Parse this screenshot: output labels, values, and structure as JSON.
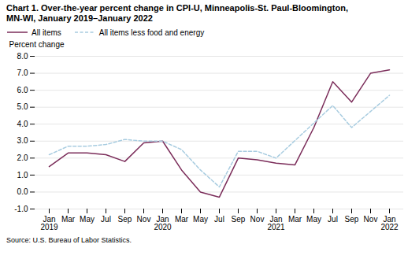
{
  "chart_data": {
    "type": "line",
    "title": "Chart 1. Over-the-year percent change in CPI-U, Minneapolis-St. Paul-Bloomington,\nMN-WI, January 2019–January 2022",
    "ylabel": "Percent change",
    "source": "Source: U.S. Bureau of Labor Statistics.",
    "categories": [
      "Jan\n2019",
      "Mar",
      "May",
      "Jul",
      "Sep",
      "Nov",
      "Jan\n2020",
      "Mar",
      "May",
      "Jul",
      "Sep",
      "Nov",
      "Jan\n2021",
      "Mar",
      "May",
      "Jul",
      "Sep",
      "Nov",
      "Jan\n2022"
    ],
    "series": [
      {
        "name": "All items",
        "color": "#7b2d5a",
        "line_style": "solid",
        "values": [
          1.5,
          2.3,
          2.3,
          2.2,
          1.8,
          2.9,
          3.0,
          1.3,
          0.0,
          -0.3,
          2.0,
          1.9,
          1.7,
          1.6,
          3.8,
          6.5,
          5.3,
          7.0,
          7.2
        ]
      },
      {
        "name": "All items less food and energy",
        "color": "#a8cce0",
        "line_style": "dashed",
        "values": [
          2.2,
          2.7,
          2.7,
          2.8,
          3.1,
          3.0,
          3.0,
          2.5,
          1.3,
          0.3,
          2.4,
          2.4,
          2.0,
          null,
          null,
          5.1,
          3.8,
          null,
          5.7
        ]
      }
    ],
    "ylim": [
      -1.0,
      8.0
    ],
    "yticks": [
      {
        "value": -1.0,
        "label": "-1.0"
      },
      {
        "value": 0.0,
        "label": "0.0"
      },
      {
        "value": 1.0,
        "label": "1.0"
      },
      {
        "value": 2.0,
        "label": "2.0"
      },
      {
        "value": 3.0,
        "label": "3.0"
      },
      {
        "value": 4.0,
        "label": "4.0"
      },
      {
        "value": 5.0,
        "label": "5.0"
      },
      {
        "value": 6.0,
        "label": "6.0"
      },
      {
        "value": 7.0,
        "label": "7.0"
      },
      {
        "value": 8.0,
        "label": "8.0"
      }
    ],
    "grid": true,
    "legend": "top"
  }
}
